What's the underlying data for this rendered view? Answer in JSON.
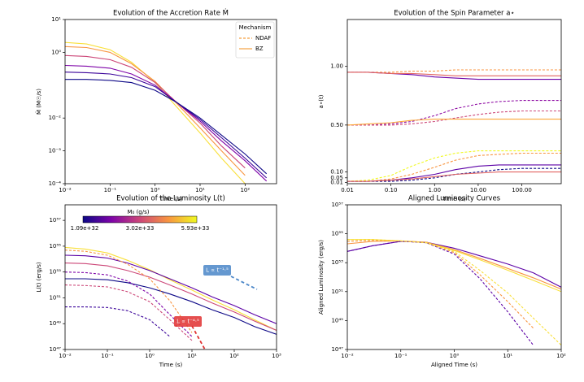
{
  "chart_data": [
    {
      "type": "line",
      "title": "Evolution of the Accretion Rate Ṁ",
      "xlabel": "Time (s)",
      "ylabel": "Ṁ (M☉/s)",
      "xscale": "log",
      "yscale": "log",
      "xlim": [
        0.01,
        500
      ],
      "ylim": [
        0.0001,
        10
      ],
      "xticks": [
        {
          "value": 0.01,
          "label": "10⁻²"
        },
        {
          "value": 0.1,
          "label": "10⁻¹"
        },
        {
          "value": 1,
          "label": "10⁰"
        },
        {
          "value": 10,
          "label": "10¹"
        },
        {
          "value": 100,
          "label": "10²"
        }
      ],
      "yticks": [
        {
          "value": 0.0001,
          "label": "10⁻⁴"
        },
        {
          "value": 0.001,
          "label": "10⁻³"
        },
        {
          "value": 0.01,
          "label": "10⁻²"
        },
        {
          "value": 1,
          "label": "10⁰"
        },
        {
          "value": 10,
          "label": "10¹"
        }
      ],
      "legend": {
        "title": "Mechanism",
        "loc": "upper right",
        "color": "#f5a142",
        "entries": [
          {
            "label": "NDAF",
            "style": "dashed"
          },
          {
            "label": "BZ",
            "style": "solid"
          }
        ]
      },
      "x": [
        0.01,
        0.03,
        0.1,
        0.3,
        1,
        3,
        10,
        30,
        100,
        300
      ],
      "series": [
        {
          "color": "#f9e03a",
          "style": "solid",
          "values": [
            2.0,
            1.8,
            1.2,
            0.5,
            0.12,
            0.022,
            0.0035,
            0.0006,
            0.0001,
            null
          ]
        },
        {
          "color": "#f89540",
          "style": "solid",
          "values": [
            1.5,
            1.4,
            1.0,
            0.45,
            0.13,
            0.028,
            0.005,
            0.001,
            0.00018,
            null
          ]
        },
        {
          "color": "#cc4778",
          "style": "solid",
          "values": [
            0.8,
            0.75,
            0.6,
            0.35,
            0.12,
            0.03,
            0.007,
            0.0014,
            0.0003,
            null
          ]
        },
        {
          "color": "#7e03a8",
          "style": "solid",
          "values": [
            0.4,
            0.38,
            0.33,
            0.22,
            0.1,
            0.03,
            0.008,
            0.002,
            0.0005,
            0.00012
          ]
        },
        {
          "color": "#3b049a",
          "style": "solid",
          "values": [
            0.25,
            0.24,
            0.22,
            0.17,
            0.09,
            0.03,
            0.009,
            0.0025,
            0.0006,
            0.00015
          ]
        },
        {
          "color": "#0d0887",
          "style": "solid",
          "values": [
            0.15,
            0.15,
            0.14,
            0.12,
            0.07,
            0.03,
            0.01,
            0.003,
            0.0008,
            0.0002
          ]
        }
      ]
    },
    {
      "type": "line",
      "title": "Evolution of the Spin Parameter a⋆",
      "xlabel": "Time (s)",
      "ylabel": "a⋆(t)",
      "xscale": "log",
      "yscale": "linear",
      "xlim": [
        0.01,
        800
      ],
      "ylim": [
        0,
        1.4
      ],
      "xticks": [
        0.01,
        {
          "value": 0.1,
          "label": "0.10"
        },
        {
          "value": 1,
          "label": "1.00"
        },
        {
          "value": 10,
          "label": "10.00"
        },
        {
          "value": 100,
          "label": "100.00"
        }
      ],
      "yticks": [
        0.01,
        0.05,
        {
          "value": 0.1,
          "label": "0.10"
        },
        {
          "value": 0.5,
          "label": "0.50"
        },
        {
          "value": 1,
          "label": "1.00"
        }
      ],
      "x": [
        0.01,
        0.03,
        0.1,
        0.3,
        1,
        3,
        10,
        30,
        100,
        300,
        800
      ],
      "series": [
        {
          "color": "#f89540",
          "style": "dashed",
          "values": [
            0.95,
            0.95,
            0.95,
            0.96,
            0.96,
            0.97,
            0.97,
            0.97,
            0.97,
            0.97,
            0.97
          ]
        },
        {
          "color": "#6a00a8",
          "style": "solid",
          "values": [
            0.95,
            0.95,
            0.94,
            0.93,
            0.91,
            0.9,
            0.89,
            0.89,
            0.89,
            0.89,
            0.89
          ]
        },
        {
          "color": "#e16462",
          "style": "solid",
          "values": [
            0.95,
            0.95,
            0.94,
            0.94,
            0.93,
            0.92,
            0.92,
            0.92,
            0.92,
            0.92,
            0.92
          ]
        },
        {
          "color": "#8f0da4",
          "style": "dashed",
          "values": [
            0.5,
            0.5,
            0.51,
            0.53,
            0.58,
            0.64,
            0.68,
            0.7,
            0.71,
            0.71,
            0.71
          ]
        },
        {
          "color": "#cc4778",
          "style": "dashed",
          "values": [
            0.5,
            0.5,
            0.5,
            0.51,
            0.53,
            0.56,
            0.59,
            0.61,
            0.62,
            0.62,
            0.62
          ]
        },
        {
          "color": "#fca636",
          "style": "solid",
          "values": [
            0.5,
            0.51,
            0.52,
            0.54,
            0.55,
            0.55,
            0.55,
            0.55,
            0.55,
            0.55,
            0.55
          ]
        },
        {
          "color": "#f0f921",
          "style": "dashed",
          "values": [
            0.02,
            0.03,
            0.07,
            0.15,
            0.22,
            0.26,
            0.28,
            0.28,
            0.28,
            0.28,
            0.28
          ]
        },
        {
          "color": "#f89540",
          "style": "dashed",
          "values": [
            0.02,
            0.02,
            0.04,
            0.08,
            0.14,
            0.2,
            0.24,
            0.25,
            0.26,
            0.26,
            0.26
          ]
        },
        {
          "color": "#5c01a6",
          "style": "solid",
          "values": [
            0.02,
            0.02,
            0.03,
            0.05,
            0.08,
            0.12,
            0.15,
            0.16,
            0.16,
            0.16,
            0.16
          ]
        },
        {
          "color": "#0d0887",
          "style": "dashed",
          "values": [
            0.02,
            0.02,
            0.02,
            0.03,
            0.05,
            0.08,
            0.1,
            0.12,
            0.13,
            0.13,
            0.13
          ]
        },
        {
          "color": "#e16462",
          "style": "solid",
          "values": [
            0.02,
            0.02,
            0.03,
            0.04,
            0.06,
            0.08,
            0.09,
            0.1,
            0.1,
            0.1,
            0.1
          ]
        }
      ]
    },
    {
      "type": "line",
      "title": "Evolution of the Luminosity L(t)",
      "xlabel": "Time (s)",
      "ylabel": "L(t) (erg/s)",
      "xscale": "log",
      "yscale": "log",
      "xlim": [
        0.01,
        1000
      ],
      "ylim": [
        1e+47,
        1.6e+58
      ],
      "xticks": [
        {
          "value": 0.01,
          "label": "10⁻²"
        },
        {
          "value": 0.1,
          "label": "10⁻¹"
        },
        {
          "value": 1,
          "label": "10⁰"
        },
        {
          "value": 10,
          "label": "10¹"
        },
        {
          "value": 100,
          "label": "10²"
        },
        {
          "value": 1000,
          "label": "10³"
        }
      ],
      "yticks": [
        {
          "value": 1e+47,
          "label": "10⁴⁷"
        },
        {
          "value": 1e+49,
          "label": "10⁴⁹"
        },
        {
          "value": 1e+51,
          "label": "10⁵¹"
        },
        {
          "value": 1e+53,
          "label": "10⁵³"
        },
        {
          "value": 1e+55,
          "label": "10⁵⁵"
        },
        {
          "value": 1e+57,
          "label": "10⁵⁷"
        }
      ],
      "colorbar": {
        "title": "M₀ (g/s)",
        "labels": [
          "1.09e+32",
          "3.02e+33",
          "5.93e+33"
        ]
      },
      "annotations": [
        {
          "text": "L ∝ t⁻¹·⁵",
          "color": "#4a86c8"
        },
        {
          "text": "L ∝ t⁻⁴·⁵",
          "color": "#e03030"
        }
      ],
      "x": [
        0.01,
        0.03,
        0.1,
        0.3,
        1,
        3,
        10,
        30,
        100,
        300,
        1000
      ],
      "series": [
        {
          "color": "#f9e03a",
          "style": "solid",
          "values": [
            8e+54,
            6e+54,
            3e+54,
            8e+53,
            1.5e+53,
            2.5e+52,
            4e+51,
            7e+50,
            1.2e+50,
            2e+49,
            3e+48
          ]
        },
        {
          "color": "#5c01a6",
          "style": "solid",
          "values": [
            2e+54,
            1.8e+54,
            1.2e+54,
            5e+53,
            1.3e+53,
            3e+52,
            6e+51,
            1.2e+51,
            2.5e+50,
            5e+49,
            1e+49
          ]
        },
        {
          "color": "#cc4778",
          "style": "solid",
          "values": [
            5e+53,
            4.5e+53,
            3e+53,
            1.3e+53,
            4e+52,
            1e+52,
            2e+51,
            4e+50,
            8e+49,
            1.6e+49,
            3e+48
          ]
        },
        {
          "color": "#0d0887",
          "style": "solid",
          "values": [
            3e+52,
            3e+52,
            2.5e+52,
            1.5e+52,
            6e+51,
            2e+51,
            5e+50,
            1.2e+50,
            3e+49,
            6e+48,
            1.5e+48
          ]
        },
        {
          "color": "#f89540",
          "style": "dashed",
          "values": [
            5e+54,
            4e+54,
            2e+54,
            4e+53,
            3e+52,
            6e+50,
            2e+48,
            null,
            null,
            null,
            null
          ]
        },
        {
          "color": "#7e03a8",
          "style": "dashed",
          "values": [
            1e+53,
            9e+52,
            6e+52,
            2e+52,
            2e+51,
            5e+49,
            1e+48,
            null,
            null,
            null,
            null
          ]
        },
        {
          "color": "#cc4778",
          "style": "dashed",
          "values": [
            1e+52,
            9e+51,
            7e+51,
            3e+51,
            5e+50,
            2e+49,
            5e+47,
            null,
            null,
            null,
            null
          ]
        },
        {
          "color": "#3b049a",
          "style": "dashed",
          "values": [
            2e+50,
            2e+50,
            1.8e+50,
            1e+50,
            2e+49,
            1e+48,
            null,
            null,
            null,
            null,
            null
          ]
        }
      ]
    },
    {
      "type": "line",
      "title": "Aligned Luminosity Curves",
      "xlabel": "Aligned Time (s)",
      "ylabel": "Aligned Luminosity (erg/s)",
      "xscale": "log",
      "yscale": "log",
      "xlim": [
        0.01,
        100
      ],
      "ylim": [
        1e+47,
        1e+57
      ],
      "xticks": [
        {
          "value": 0.01,
          "label": "10⁻²"
        },
        {
          "value": 0.1,
          "label": "10⁻¹"
        },
        {
          "value": 1,
          "label": "10⁰"
        },
        {
          "value": 10,
          "label": "10¹"
        },
        {
          "value": 100,
          "label": "10²"
        }
      ],
      "yticks": [
        {
          "value": 1e+47,
          "label": "10⁴⁷"
        },
        {
          "value": 1e+49,
          "label": "10⁴⁹"
        },
        {
          "value": 1e+51,
          "label": "10⁵¹"
        },
        {
          "value": 1e+53,
          "label": "10⁵³"
        },
        {
          "value": 1e+55,
          "label": "10⁵⁵"
        },
        {
          "value": 1e+57,
          "label": "10⁵⁷"
        }
      ],
      "x": [
        0.01,
        0.03,
        0.1,
        0.3,
        1,
        3,
        10,
        30,
        100
      ],
      "series": [
        {
          "color": "#5c01a6",
          "style": "solid",
          "values": [
            6e+53,
            1.5e+54,
            3e+54,
            2.6e+54,
            1e+54,
            3e+53,
            8e+52,
            2e+52,
            2e+51
          ]
        },
        {
          "color": "#f89540",
          "style": "solid",
          "values": [
            2e+54,
            3e+54,
            3.2e+54,
            2.6e+54,
            8e+53,
            2e+53,
            4e+52,
            9e+51,
            1.5e+51
          ]
        },
        {
          "color": "#f9e03a",
          "style": "solid",
          "values": [
            4e+54,
            4e+54,
            3.2e+54,
            2.4e+54,
            7e+53,
            1.6e+53,
            3e+52,
            6e+51,
            1e+51
          ]
        },
        {
          "color": "#5c01a6",
          "style": "dashed",
          "values": [
            6e+53,
            1.5e+54,
            3e+54,
            2.4e+54,
            4e+53,
            8e+51,
            4e+49,
            2e+47,
            null
          ]
        },
        {
          "color": "#f89540",
          "style": "dashed",
          "values": [
            3e+54,
            3.5e+54,
            3.2e+54,
            2.4e+54,
            5e+53,
            1.5e+52,
            2e+50,
            3e+48,
            null
          ]
        },
        {
          "color": "#f9e03a",
          "style": "dashed",
          "values": [
            4e+54,
            4e+54,
            3.2e+54,
            2.4e+54,
            6e+53,
            3e+52,
            8e+50,
            1.5e+49,
            2e+47
          ]
        }
      ]
    }
  ]
}
